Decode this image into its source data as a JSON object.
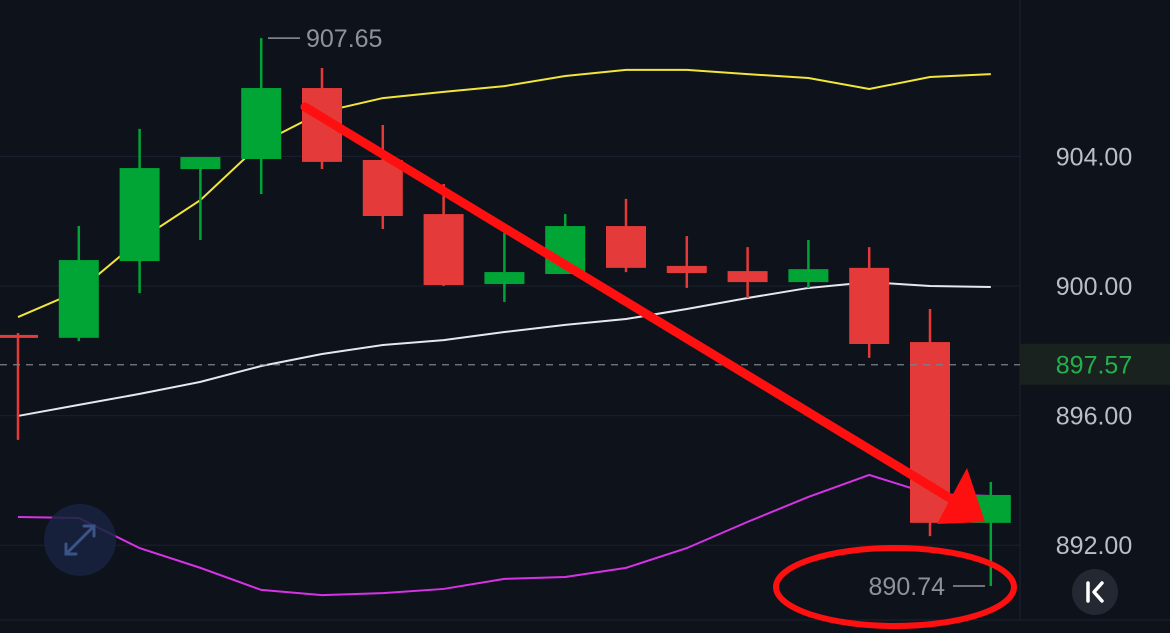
{
  "chart_data": {
    "type": "candlestick",
    "ylim": [
      889.9,
      909.2
    ],
    "y_ticks": [
      "904.00",
      "900.00",
      "896.00",
      "892.00"
    ],
    "y_tick_values": [
      904,
      900,
      896,
      892
    ],
    "grid": true,
    "candles": [
      {
        "o": 898.49,
        "h": 898.55,
        "l": 895.25,
        "c": 898.46
      },
      {
        "o": 898.4,
        "h": 901.85,
        "l": 898.3,
        "c": 900.8
      },
      {
        "o": 900.77,
        "h": 904.85,
        "l": 899.78,
        "c": 903.64
      },
      {
        "o": 903.61,
        "h": 903.98,
        "l": 901.42,
        "c": 903.98
      },
      {
        "o": 903.92,
        "h": 907.65,
        "l": 902.84,
        "c": 906.11
      },
      {
        "o": 906.11,
        "h": 906.73,
        "l": 903.61,
        "c": 903.83
      },
      {
        "o": 903.89,
        "h": 904.97,
        "l": 901.76,
        "c": 902.16
      },
      {
        "o": 902.22,
        "h": 903.15,
        "l": 900.0,
        "c": 900.03
      },
      {
        "o": 900.06,
        "h": 901.64,
        "l": 899.51,
        "c": 900.43
      },
      {
        "o": 900.37,
        "h": 902.22,
        "l": 900.37,
        "c": 901.85
      },
      {
        "o": 901.85,
        "h": 902.69,
        "l": 900.43,
        "c": 900.56
      },
      {
        "o": 900.62,
        "h": 901.54,
        "l": 899.94,
        "c": 900.4
      },
      {
        "o": 900.46,
        "h": 901.2,
        "l": 899.63,
        "c": 900.12
      },
      {
        "o": 900.12,
        "h": 901.42,
        "l": 899.94,
        "c": 900.52
      },
      {
        "o": 900.56,
        "h": 901.2,
        "l": 897.78,
        "c": 898.21
      },
      {
        "o": 898.27,
        "h": 899.29,
        "l": 892.28,
        "c": 892.69
      },
      {
        "o": 892.69,
        "h": 893.95,
        "l": 890.74,
        "c": 893.55
      }
    ],
    "lines": [
      {
        "color": "#f2e63a",
        "values": [
          899.04,
          899.85,
          901.42,
          902.65,
          904.41,
          905.37,
          905.8,
          905.99,
          906.17,
          906.48,
          906.67,
          906.67,
          906.54,
          906.42,
          906.08,
          906.45,
          906.54
        ]
      },
      {
        "color": "#e6e8ee",
        "values": [
          895.99,
          896.33,
          896.67,
          897.04,
          897.53,
          897.9,
          898.18,
          898.33,
          898.58,
          898.8,
          898.98,
          899.29,
          899.63,
          899.94,
          900.12,
          900.0,
          899.97
        ]
      },
      {
        "color": "#d633e6",
        "values": [
          892.87,
          892.84,
          891.91,
          891.3,
          890.62,
          890.46,
          890.52,
          890.65,
          890.96,
          891.02,
          891.3,
          891.91,
          892.72,
          893.49,
          894.17,
          893.58,
          893.52
        ]
      }
    ],
    "high_label": "907.65",
    "high_value": 907.65,
    "low_label": "890.74",
    "low_value": 890.74,
    "current_price_label": "897.57",
    "current_price": 897.57,
    "colors": {
      "up": "#00a535",
      "down": "#e53a3a",
      "current": "#22b24c",
      "annotation": "#ff1010"
    }
  },
  "controls": {
    "expand_icon": "expand-arrows-icon",
    "scroll_latest_icon": "jump-to-latest-icon"
  }
}
